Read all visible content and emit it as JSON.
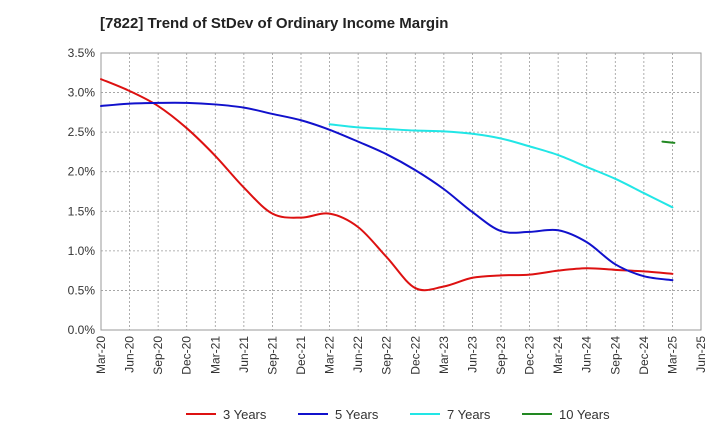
{
  "chart_data": {
    "type": "line",
    "title": "[7822]  Trend of StDev of Ordinary Income Margin",
    "xlabel": "",
    "ylabel": "",
    "ylim": [
      0,
      3.5
    ],
    "y_ticks": [
      "0.0%",
      "0.5%",
      "1.0%",
      "1.5%",
      "2.0%",
      "2.5%",
      "3.0%",
      "3.5%"
    ],
    "x_ticks": [
      "Mar-20",
      "Jun-20",
      "Sep-20",
      "Dec-20",
      "Mar-21",
      "Jun-21",
      "Sep-21",
      "Dec-21",
      "Mar-22",
      "Jun-22",
      "Sep-22",
      "Dec-22",
      "Mar-23",
      "Jun-23",
      "Sep-23",
      "Dec-23",
      "Mar-24",
      "Jun-24",
      "Sep-24",
      "Dec-24",
      "Mar-25",
      "Jun-25"
    ],
    "grid": true,
    "legend": "bottom",
    "series": [
      {
        "name": "3 Years",
        "color": "#dd1111",
        "values": [
          3.17,
          3.02,
          2.83,
          2.55,
          2.2,
          1.8,
          1.47,
          1.42,
          1.47,
          1.3,
          0.92,
          0.53,
          0.55,
          0.66,
          0.69,
          0.7,
          0.75,
          0.78,
          0.76,
          0.74,
          0.71,
          null
        ]
      },
      {
        "name": "5 Years",
        "color": "#1111cc",
        "values": [
          2.83,
          2.86,
          2.87,
          2.87,
          2.85,
          2.81,
          2.73,
          2.65,
          2.53,
          2.38,
          2.22,
          2.02,
          1.78,
          1.49,
          1.25,
          1.24,
          1.26,
          1.11,
          0.83,
          0.68,
          0.63,
          null
        ]
      },
      {
        "name": "7 Years",
        "color": "#22e6e6",
        "values": [
          null,
          null,
          null,
          null,
          null,
          null,
          null,
          null,
          2.6,
          2.56,
          2.54,
          2.52,
          2.51,
          2.48,
          2.42,
          2.32,
          2.21,
          2.06,
          1.91,
          1.73,
          1.55,
          null
        ]
      },
      {
        "name": "10 Years",
        "color": "#228822",
        "values": [
          null,
          null,
          null,
          null,
          null,
          null,
          null,
          null,
          null,
          null,
          null,
          null,
          null,
          null,
          null,
          null,
          null,
          null,
          null,
          null,
          2.37,
          null
        ]
      }
    ]
  }
}
